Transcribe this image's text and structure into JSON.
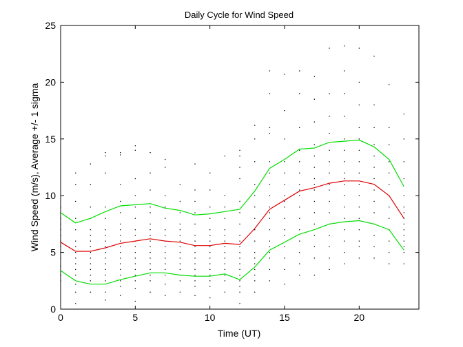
{
  "chart_data": {
    "type": "line",
    "title": "Daily Cycle for Wind Speed",
    "xlabel": "Time (UT)",
    "ylabel": "Wind Speed (m/s), Average +/- 1 sigma",
    "xlim": [
      0,
      24
    ],
    "ylim": [
      0,
      25
    ],
    "xticks": [
      0,
      5,
      10,
      15,
      20
    ],
    "yticks": [
      0,
      5,
      10,
      15,
      20,
      25
    ],
    "grid": false,
    "colors": {
      "mean": "#dd0000",
      "sigma": "#00dd00",
      "points": "#000000",
      "axes": "#000000"
    },
    "x": [
      0,
      1,
      2,
      3,
      4,
      5,
      6,
      7,
      8,
      9,
      10,
      11,
      12,
      13,
      14,
      15,
      16,
      17,
      18,
      19,
      20,
      21,
      22,
      23
    ],
    "series": [
      {
        "name": "Average + 1 sigma",
        "color": "#00dd00",
        "values": [
          8.5,
          7.6,
          8.0,
          8.6,
          9.1,
          9.2,
          9.3,
          8.9,
          8.7,
          8.3,
          8.4,
          8.6,
          8.8,
          10.4,
          12.4,
          13.2,
          14.1,
          14.2,
          14.7,
          14.8,
          14.9,
          14.3,
          13.2,
          10.8
        ]
      },
      {
        "name": "Average",
        "color": "#dd0000",
        "values": [
          5.9,
          5.1,
          5.1,
          5.4,
          5.8,
          6.0,
          6.2,
          6.0,
          5.9,
          5.6,
          5.6,
          5.8,
          5.7,
          7.1,
          8.8,
          9.6,
          10.4,
          10.7,
          11.1,
          11.3,
          11.3,
          11.0,
          10.0,
          8.0
        ]
      },
      {
        "name": "Average - 1 sigma",
        "color": "#00dd00",
        "values": [
          3.4,
          2.5,
          2.2,
          2.2,
          2.6,
          2.9,
          3.2,
          3.2,
          3.0,
          2.9,
          2.9,
          3.1,
          2.6,
          3.7,
          5.2,
          5.9,
          6.6,
          7.0,
          7.5,
          7.7,
          7.8,
          7.5,
          7.0,
          5.2
        ]
      }
    ],
    "scatter_hours": [
      0,
      1,
      2,
      3,
      4,
      5,
      6,
      7,
      8,
      9,
      10,
      11,
      12,
      13,
      14,
      15,
      16,
      17,
      18,
      19,
      20,
      21,
      22,
      23
    ],
    "scatter_values": [
      [
        3.0,
        3.8,
        4.5,
        5.0,
        5.5,
        6.0,
        6.5,
        7.0,
        7.5,
        8.0,
        8.5,
        9.0,
        2.5
      ],
      [
        0.5,
        1.5,
        2.2,
        3.0,
        3.5,
        4.0,
        4.5,
        5.0,
        5.5,
        6.0,
        7.0,
        8.0,
        9.5,
        11.0,
        12.0
      ],
      [
        1.5,
        2.5,
        3.0,
        3.5,
        4.0,
        4.5,
        5.0,
        5.5,
        6.0,
        6.5,
        7.0,
        8.0,
        9.0,
        11.0,
        12.8
      ],
      [
        0.8,
        1.5,
        2.5,
        3.0,
        3.5,
        4.0,
        4.5,
        5.0,
        5.5,
        6.0,
        6.5,
        7.0,
        8.0,
        9.0,
        12.0,
        13.5,
        13.8
      ],
      [
        1.2,
        2.0,
        2.5,
        3.0,
        3.5,
        4.0,
        4.5,
        5.0,
        5.5,
        6.0,
        6.5,
        7.0,
        7.5,
        8.5,
        9.5,
        11.0,
        13.6,
        13.8
      ],
      [
        0.7,
        1.8,
        2.5,
        3.0,
        3.5,
        4.0,
        4.5,
        5.0,
        5.5,
        6.0,
        6.5,
        7.0,
        8.0,
        9.0,
        10.0,
        11.5,
        14.0,
        14.4
      ],
      [
        1.5,
        2.5,
        3.0,
        3.5,
        4.0,
        4.5,
        5.0,
        5.5,
        6.0,
        6.5,
        7.0,
        7.5,
        8.5,
        9.0,
        10.5,
        12.0,
        13.8
      ],
      [
        1.2,
        2.2,
        3.0,
        3.5,
        4.0,
        4.5,
        5.0,
        5.5,
        6.0,
        6.5,
        7.0,
        8.0,
        9.0,
        10.0,
        12.5,
        13.2
      ],
      [
        1.5,
        2.5,
        3.0,
        3.5,
        4.0,
        4.5,
        5.0,
        5.5,
        6.0,
        6.5,
        7.0,
        7.5,
        8.5,
        9.5,
        11.0
      ],
      [
        1.2,
        2.0,
        2.5,
        3.0,
        3.5,
        4.0,
        4.5,
        5.0,
        5.5,
        6.0,
        6.5,
        7.5,
        8.5,
        9.5,
        10.5,
        12.8
      ],
      [
        1.0,
        2.0,
        2.5,
        3.0,
        3.5,
        4.0,
        4.5,
        5.0,
        5.5,
        6.0,
        6.5,
        7.0,
        8.0,
        9.0,
        10.5,
        12.0
      ],
      [
        1.5,
        2.5,
        3.0,
        3.5,
        4.0,
        4.5,
        5.0,
        5.5,
        6.0,
        6.5,
        7.0,
        8.0,
        9.0,
        10.0,
        13.5
      ],
      [
        0.5,
        1.5,
        2.0,
        2.5,
        3.0,
        3.5,
        4.0,
        4.5,
        5.0,
        5.5,
        6.0,
        6.5,
        7.5,
        8.5,
        9.5,
        11.5,
        12.5,
        13.5,
        14.0
      ],
      [
        1.5,
        2.5,
        3.0,
        3.5,
        4.0,
        4.5,
        5.0,
        6.0,
        7.0,
        8.0,
        9.0,
        10.0,
        11.0,
        13.0,
        15.0,
        16.2
      ],
      [
        2.5,
        3.5,
        4.5,
        5.0,
        5.5,
        6.0,
        7.0,
        8.0,
        8.5,
        9.0,
        10.0,
        11.0,
        12.0,
        13.0,
        15.5,
        16.0,
        19.0,
        21.0
      ],
      [
        2.2,
        3.5,
        4.5,
        5.5,
        6.5,
        7.0,
        8.0,
        9.0,
        9.5,
        10.0,
        11.0,
        12.0,
        13.0,
        15.0,
        17.5,
        20.7
      ],
      [
        3.0,
        4.0,
        5.0,
        6.0,
        7.0,
        8.0,
        9.0,
        10.0,
        10.5,
        11.0,
        12.0,
        13.0,
        14.0,
        16.0,
        19.0,
        21.0
      ],
      [
        3.0,
        4.5,
        5.5,
        6.5,
        7.5,
        8.5,
        9.5,
        10.5,
        11.0,
        11.5,
        12.5,
        13.5,
        14.5,
        16.5,
        18.5,
        20.5
      ],
      [
        3.5,
        4.5,
        5.5,
        6.5,
        7.5,
        8.5,
        9.5,
        10.5,
        11.0,
        12.0,
        13.0,
        14.0,
        15.5,
        17.0,
        19.0,
        23.0
      ],
      [
        4.0,
        5.0,
        6.0,
        7.0,
        8.0,
        9.0,
        10.0,
        11.0,
        11.5,
        12.0,
        13.0,
        14.0,
        15.0,
        17.0,
        19.0,
        21.0,
        23.2
      ],
      [
        4.5,
        5.5,
        6.0,
        7.0,
        8.0,
        9.0,
        10.0,
        11.0,
        12.0,
        13.0,
        14.0,
        15.0,
        16.0,
        18.0,
        20.0,
        23.0
      ],
      [
        4.5,
        5.5,
        6.5,
        7.5,
        8.5,
        9.5,
        10.5,
        11.5,
        12.5,
        13.5,
        14.5,
        16.0,
        18.0,
        22.3
      ],
      [
        4.0,
        5.0,
        6.0,
        7.0,
        8.0,
        9.0,
        10.0,
        11.0,
        12.0,
        13.0,
        14.5,
        16.0,
        19.8
      ],
      [
        4.0,
        5.0,
        5.5,
        6.0,
        6.5,
        7.0,
        7.5,
        8.0,
        8.5,
        9.0,
        10.0,
        11.5,
        13.0,
        15.0,
        17.2
      ]
    ]
  }
}
